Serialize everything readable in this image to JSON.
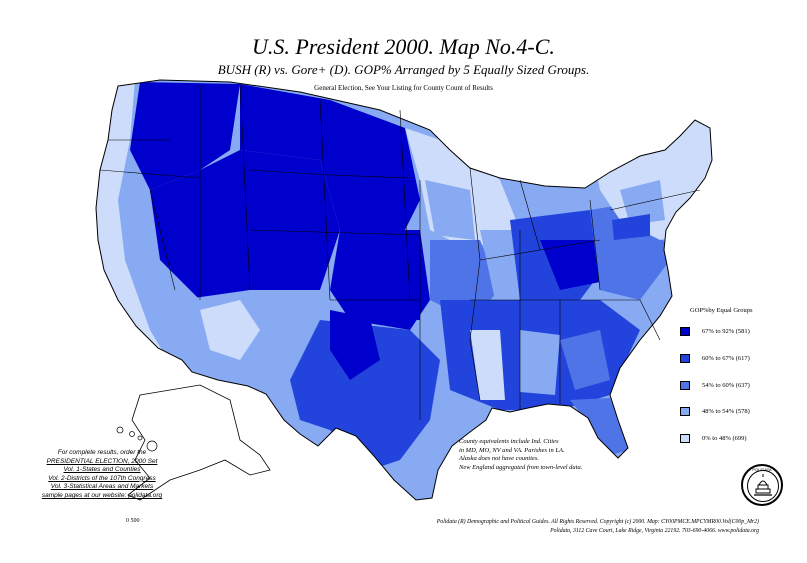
{
  "title": "U.S. President 2000. Map No.4-C.",
  "subtitle": "BUSH (R) vs. Gore+ (D). GOP% Arranged by 5 Equally Sized Groups.",
  "note": "General Election, See Your Listing for County Count of Results",
  "colors": {
    "q5": "#0000cc",
    "q4": "#2244dd",
    "q3": "#4e74e8",
    "q2": "#88aaf2",
    "q1": "#cddcfb",
    "water": "#ffffff",
    "border": "#000000"
  },
  "legend": {
    "title": "GOP%by Equal Groups",
    "items": [
      {
        "label": "67% to 92% (581)",
        "color": "#0000cc"
      },
      {
        "label": "60% to 67% (617)",
        "color": "#2244dd"
      },
      {
        "label": "54% to 60% (637)",
        "color": "#4e74e8"
      },
      {
        "label": "48% to 54% (578)",
        "color": "#88aaf2"
      },
      {
        "label": "0% to 48% (699)",
        "color": "#cddcfb"
      }
    ]
  },
  "county_notes": [
    "County equivalents include Ind. Cities",
    "in MD, MO, NV and VA. Parishes in LA.",
    "Alaska does not have counties.",
    "New England aggregated from town-level data."
  ],
  "promo": [
    "For complete results, order the",
    "PRESIDENTIAL ELECTION, 2000 Set",
    "Vol. 1-States and Counties",
    "Vol. 2-Districts of the 107th Congress",
    "Vol. 3-Statistical Areas and Markets",
    "sample pages at our website: polidata.org"
  ],
  "footer": [
    "Polidata (R) Demographic and Political Guides. All Rights Reserved. Copyright (c) 2000. Map: CY00PMCE.MPCYMR00.Vol(C00p_Mr2)",
    "Polidata, 3112 Cave Court, Lake Ridge, Virginia 22192. 703-690-4066. www.polidata.org"
  ],
  "seal_text": "POLIDATA",
  "scale_text": "0 500"
}
